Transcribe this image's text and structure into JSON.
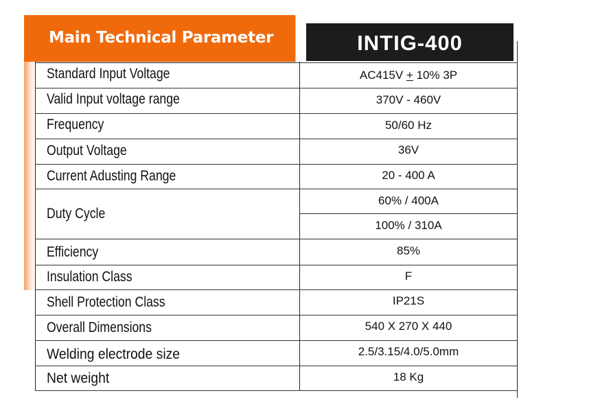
{
  "header": {
    "title": "Main Technical Parameter",
    "model": "INTIG-400"
  },
  "rows": [
    {
      "label": "Standard Input Voltage",
      "value_pre": "AC415V ",
      "value_sym": "+",
      "value_post": " 10% 3P"
    },
    {
      "label": "Valid Input voltage range",
      "value": "370V - 460V"
    },
    {
      "label": "Frequency",
      "value": "50/60 Hz"
    },
    {
      "label": "Output Voltage",
      "value": "36V"
    },
    {
      "label": "Current Adusting Range",
      "value": "20 - 400 A"
    },
    {
      "label": "Duty Cycle",
      "values": [
        "60% / 400A",
        "100% / 310A"
      ]
    },
    {
      "label": "Efficiency",
      "value": "85%"
    },
    {
      "label": "Insulation Class",
      "value": "F"
    },
    {
      "label": "Shell Protection Class",
      "value": "IP21S"
    },
    {
      "label": "Overall Dimensions",
      "value": "540 X 270 X 440"
    },
    {
      "label": "Welding electrode size",
      "value": "2.5/3.15/4.0/5.0mm"
    },
    {
      "label": "Net weight",
      "value": "18 Kg"
    }
  ],
  "colors": {
    "accent": "#f06a0c",
    "model_bg": "#1c1c1c"
  }
}
